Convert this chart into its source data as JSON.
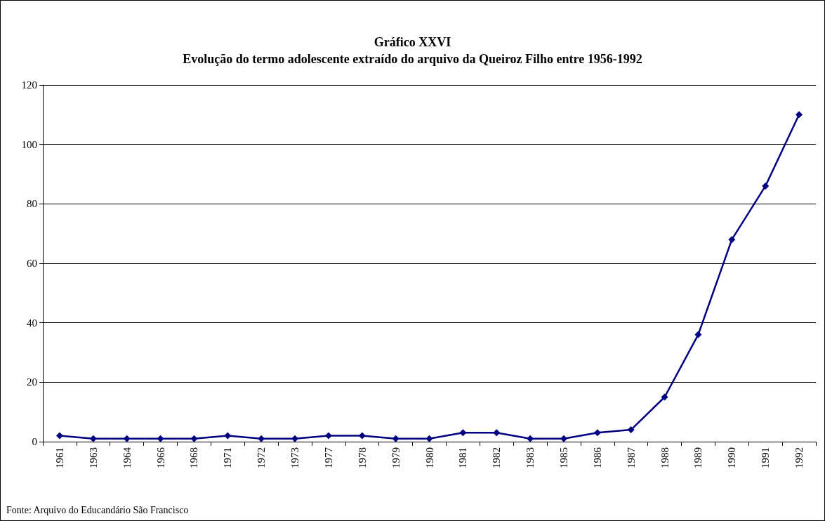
{
  "chart_data": {
    "type": "line",
    "title": "Gráfico XXVI",
    "subtitle": "Evolução do termo adolescente extraído do arquivo da Queiroz Filho entre 1956-1992",
    "categories": [
      "1961",
      "1963",
      "1964",
      "1966",
      "1968",
      "1971",
      "1972",
      "1973",
      "1977",
      "1978",
      "1979",
      "1980",
      "1981",
      "1982",
      "1983",
      "1985",
      "1986",
      "1987",
      "1988",
      "1989",
      "1990",
      "1991",
      "1992"
    ],
    "series": [
      {
        "color": "#000080",
        "values": [
          2,
          1,
          1,
          1,
          1,
          2,
          1,
          1,
          2,
          2,
          1,
          1,
          3,
          3,
          1,
          1,
          3,
          4,
          15,
          36,
          68,
          86,
          110
        ]
      }
    ],
    "ylim": [
      0,
      120
    ],
    "yticks": [
      0,
      20,
      40,
      60,
      80,
      100,
      120
    ],
    "grid": "y",
    "marker": "diamond",
    "line_style": "solid",
    "annotations": [
      "Fonte: Arquivo do Educandário São Francisco"
    ]
  }
}
